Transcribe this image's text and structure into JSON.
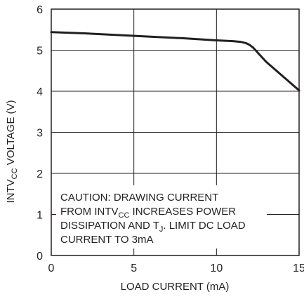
{
  "chart_data": {
    "type": "line",
    "xlabel": "LOAD CURRENT (mA)",
    "ylabel": {
      "prefix": "INTV",
      "subscript": "CC",
      "suffix": " VOLTAGE (V)"
    },
    "xlim": [
      0,
      15
    ],
    "ylim": [
      0,
      6
    ],
    "x_ticks": [
      0,
      5,
      10,
      15
    ],
    "y_ticks": [
      0,
      1,
      2,
      3,
      4,
      5,
      6
    ],
    "grid": true,
    "series": [
      {
        "x": [
          0,
          2,
          4,
          6,
          8,
          10,
          11,
          11.5,
          11.8,
          12.0,
          12.2,
          13,
          14,
          15
        ],
        "y": [
          5.44,
          5.41,
          5.37,
          5.33,
          5.29,
          5.24,
          5.22,
          5.2,
          5.17,
          5.13,
          5.07,
          4.72,
          4.37,
          4.02
        ]
      }
    ],
    "annotation": {
      "lines": [
        [
          {
            "t": "CAUTION: DRAWING CURRENT"
          }
        ],
        [
          {
            "t": "FROM INTV"
          },
          {
            "t": "CC",
            "sub": true
          },
          {
            "t": " INCREASES POWER"
          }
        ],
        [
          {
            "t": "DISSIPATION AND T"
          },
          {
            "t": "J",
            "sub": true
          },
          {
            "t": ". LIMIT DC LOAD"
          }
        ],
        [
          {
            "t": "CURRENT TO 3mA"
          }
        ]
      ]
    }
  },
  "colors": {
    "line": "#231f20",
    "grid": "#231f20",
    "frame": "#231f20",
    "background": "#ffffff",
    "text": "#231f20"
  }
}
